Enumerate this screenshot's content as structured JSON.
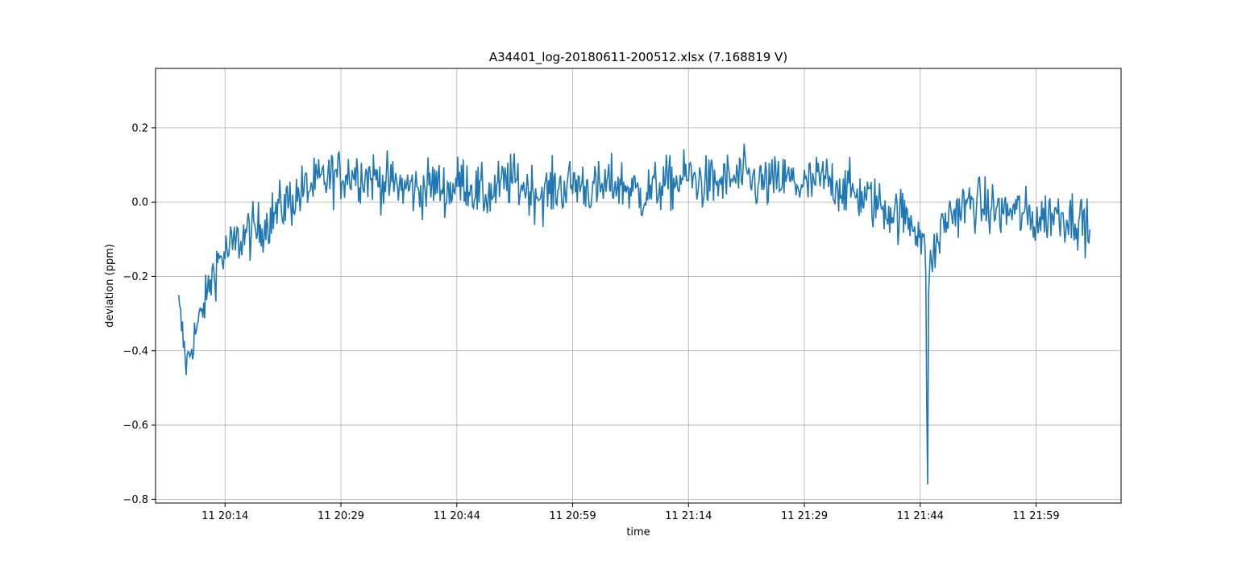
{
  "chart_data": {
    "type": "line",
    "title": "A34401_log-20180611-200512.xlsx (7.168819 V)",
    "xlabel": "time",
    "ylabel": "deviation (ppm)",
    "grid": true,
    "x_range_minutes": [
      20.0,
      21.95
    ],
    "ylim": [
      -0.81,
      0.36
    ],
    "x_ticks": [
      {
        "label": "11 20:14",
        "t": "2018-06-11 20:14"
      },
      {
        "label": "11 20:29",
        "t": "2018-06-11 20:29"
      },
      {
        "label": "11 20:44",
        "t": "2018-06-11 20:44"
      },
      {
        "label": "11 20:59",
        "t": "2018-06-11 20:59"
      },
      {
        "label": "11 21:14",
        "t": "2018-06-11 21:14"
      },
      {
        "label": "11 21:29",
        "t": "2018-06-11 21:29"
      },
      {
        "label": "11 21:44",
        "t": "2018-06-11 21:44"
      },
      {
        "label": "11 21:59",
        "t": "2018-06-11 21:59"
      }
    ],
    "y_ticks": [
      {
        "label": "0.2",
        "v": 0.2
      },
      {
        "label": "0.0",
        "v": 0.0
      },
      {
        "label": "−0.2",
        "v": -0.2
      },
      {
        "label": "−0.4",
        "v": -0.4
      },
      {
        "label": "−0.6",
        "v": -0.6
      },
      {
        "label": "−0.8",
        "v": -0.8
      }
    ],
    "series": [
      {
        "color": "#1f77b4",
        "x_time": [
          "20:08",
          "20:09",
          "20:10",
          "20:11",
          "20:12",
          "20:13",
          "20:14",
          "20:15",
          "20:16",
          "20:17",
          "20:18",
          "20:19",
          "20:20",
          "20:21",
          "20:22",
          "20:23",
          "20:24",
          "20:25",
          "20:26",
          "20:27",
          "20:28",
          "20:29",
          "20:30",
          "20:31",
          "20:32",
          "20:33",
          "20:34",
          "20:35",
          "20:36",
          "20:37",
          "20:38",
          "20:39",
          "20:40",
          "20:41",
          "20:42",
          "20:43",
          "20:44",
          "20:45",
          "20:46",
          "20:47",
          "20:48",
          "20:49",
          "20:50",
          "20:51",
          "20:52",
          "20:53",
          "20:54",
          "20:55",
          "20:56",
          "20:57",
          "20:58",
          "20:59",
          "21:00",
          "21:01",
          "21:02",
          "21:03",
          "21:04",
          "21:05",
          "21:06",
          "21:07",
          "21:08",
          "21:09",
          "21:10",
          "21:11",
          "21:12",
          "21:13",
          "21:14",
          "21:15",
          "21:16",
          "21:17",
          "21:18",
          "21:19",
          "21:20",
          "21:21",
          "21:22",
          "21:23",
          "21:24",
          "21:25",
          "21:26",
          "21:27",
          "21:28",
          "21:29",
          "21:30",
          "21:31",
          "21:32",
          "21:33",
          "21:34",
          "21:35",
          "21:36",
          "21:37",
          "21:38",
          "21:39",
          "21:40",
          "21:41",
          "21:42",
          "21:43",
          "21:44",
          "21:45",
          "21:46",
          "21:47",
          "21:48",
          "21:49",
          "21:50",
          "21:51",
          "21:52",
          "21:53",
          "21:54",
          "21:55",
          "21:56",
          "21:57",
          "21:58",
          "21:59",
          "22:00",
          "22:01",
          "22:02",
          "22:03",
          "22:04",
          "22:05",
          "22:06"
        ],
        "y": [
          -0.28,
          -0.44,
          -0.36,
          -0.3,
          -0.22,
          -0.16,
          -0.14,
          -0.12,
          -0.1,
          -0.08,
          -0.08,
          -0.06,
          -0.04,
          -0.02,
          0.0,
          0.01,
          0.03,
          0.04,
          0.05,
          0.06,
          0.07,
          0.07,
          0.08,
          0.08,
          0.07,
          0.07,
          0.06,
          0.05,
          0.05,
          0.04,
          0.04,
          0.03,
          0.04,
          0.05,
          0.04,
          0.03,
          0.05,
          0.06,
          0.04,
          0.02,
          0.02,
          0.03,
          0.05,
          0.06,
          0.05,
          0.04,
          0.03,
          0.02,
          0.03,
          0.04,
          0.04,
          0.05,
          0.05,
          0.04,
          0.03,
          0.04,
          0.05,
          0.05,
          0.04,
          0.03,
          0.02,
          0.03,
          0.04,
          0.05,
          0.05,
          0.06,
          0.07,
          0.06,
          0.05,
          0.05,
          0.05,
          0.06,
          0.06,
          0.07,
          0.06,
          0.05,
          0.05,
          0.05,
          0.06,
          0.06,
          0.05,
          0.04,
          0.05,
          0.06,
          0.06,
          0.05,
          0.04,
          0.03,
          0.02,
          0.01,
          0.0,
          -0.01,
          -0.02,
          -0.03,
          -0.04,
          -0.05,
          -0.08,
          -0.2,
          -0.12,
          -0.06,
          -0.03,
          -0.02,
          -0.01,
          0.0,
          -0.01,
          -0.02,
          -0.02,
          -0.03,
          -0.02,
          -0.03,
          -0.04,
          -0.05,
          -0.04,
          -0.03,
          -0.03,
          -0.04,
          -0.04,
          -0.05,
          -0.08
        ],
        "noise_amplitude": 0.1,
        "spikes": [
          {
            "t": "21:45",
            "y": -0.76
          },
          {
            "t": "21:44.8",
            "y": -0.55
          }
        ]
      }
    ]
  }
}
